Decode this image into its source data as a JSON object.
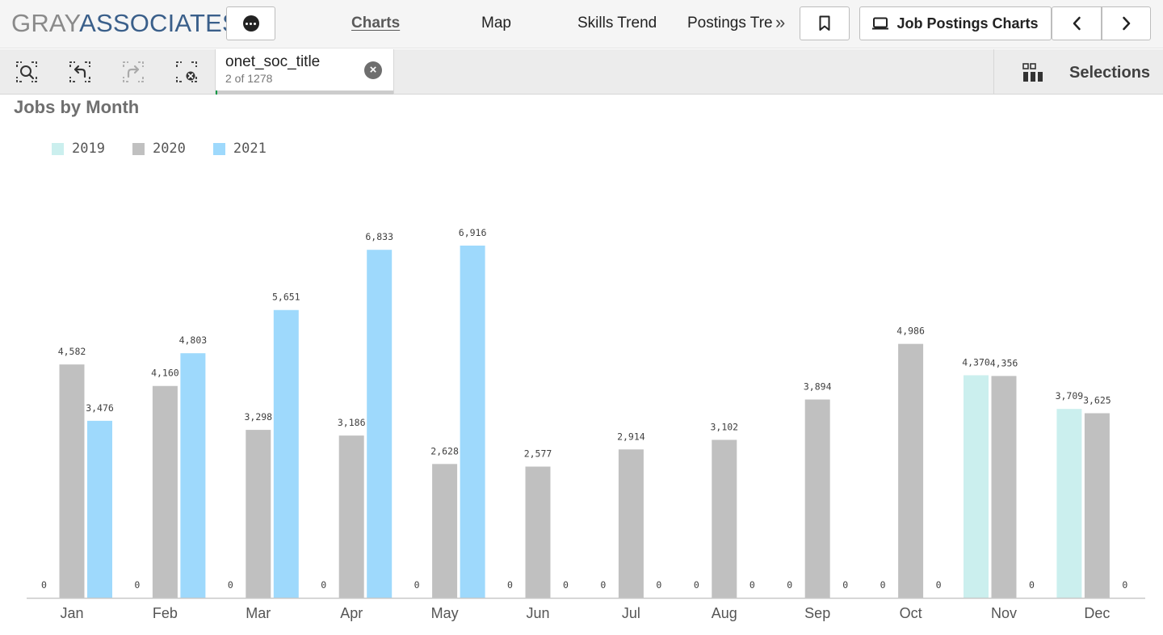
{
  "header": {
    "logo_part1": "GRAY",
    "logo_part2": "ASSOCIATES",
    "tabs": [
      {
        "label": "Charts",
        "active": true
      },
      {
        "label": "Map",
        "active": false
      },
      {
        "label": "Skills Trend",
        "active": false
      },
      {
        "label": "Postings Trend",
        "active": false
      }
    ],
    "sheet_button_label": "Job Postings Charts",
    "icons": {
      "more": "more-options-icon",
      "overflow": "double-chevron-right-icon",
      "bookmark": "bookmark-icon",
      "sheet": "sheet-icon",
      "prev": "chevron-left-icon",
      "next": "chevron-right-icon"
    }
  },
  "selection_bar": {
    "field": "onet_soc_title",
    "count": "2 of 1278",
    "selections_label": "Selections",
    "icons": {
      "search": "smart-search-icon",
      "back": "step-back-icon",
      "forward": "step-forward-icon",
      "clear": "clear-selections-icon",
      "close": "close-icon",
      "selections": "selections-grid-icon"
    }
  },
  "colors": {
    "2019": "#cbefee",
    "2020": "#c0c0c0",
    "2021": "#9ed9fc",
    "axis": "#c8c8c8",
    "title": "#6f6f6f"
  },
  "chart_data": {
    "type": "bar",
    "title": "Jobs by Month",
    "xlabel": "",
    "ylabel": "",
    "ylim": [
      0,
      7000
    ],
    "legend_position": "top-left",
    "grid": false,
    "categories": [
      "Jan",
      "Feb",
      "Mar",
      "Apr",
      "May",
      "Jun",
      "Jul",
      "Aug",
      "Sep",
      "Oct",
      "Nov",
      "Dec"
    ],
    "series": [
      {
        "name": "2019",
        "values": [
          0,
          0,
          0,
          0,
          0,
          0,
          0,
          0,
          0,
          0,
          4370,
          3709
        ]
      },
      {
        "name": "2020",
        "values": [
          4582,
          4160,
          3298,
          3186,
          2628,
          2577,
          2914,
          3102,
          3894,
          4986,
          4356,
          3625
        ]
      },
      {
        "name": "2021",
        "values": [
          3476,
          4803,
          5651,
          6833,
          6916,
          0,
          0,
          0,
          0,
          0,
          0,
          0
        ]
      }
    ]
  }
}
